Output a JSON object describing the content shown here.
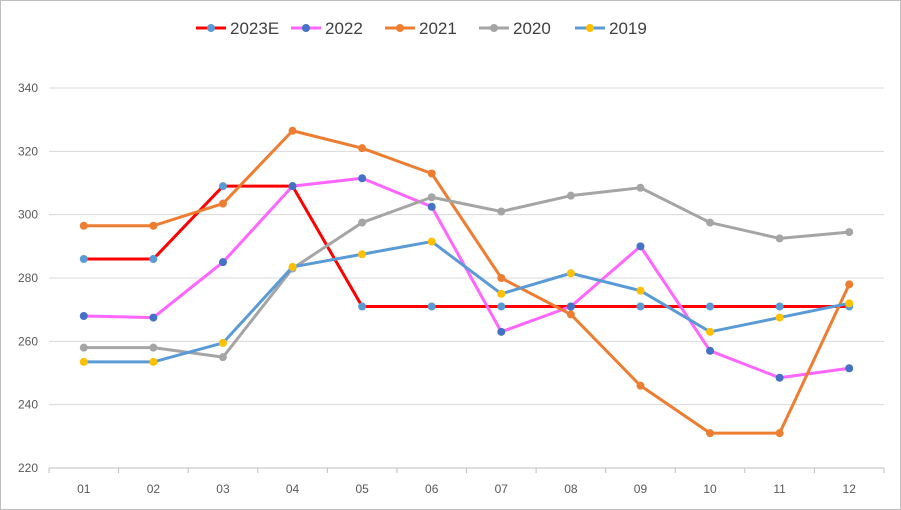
{
  "chart_data": {
    "type": "line",
    "title": "",
    "xlabel": "",
    "ylabel": "",
    "categories": [
      "01",
      "02",
      "03",
      "04",
      "05",
      "06",
      "07",
      "08",
      "09",
      "10",
      "11",
      "12"
    ],
    "ylim": [
      220,
      340
    ],
    "yticks": [
      220,
      240,
      260,
      280,
      300,
      320,
      340
    ],
    "grid": "horizontal",
    "legend_position": "top",
    "series": [
      {
        "name": "2023E",
        "color": "#ff0000",
        "marker_color": "#5b9bd5",
        "values": [
          286,
          286,
          309,
          309,
          271,
          271,
          271,
          271,
          271,
          271,
          271,
          271
        ]
      },
      {
        "name": "2022",
        "color": "#ff66ff",
        "marker_color": "#4472c4",
        "values": [
          268,
          267.5,
          285,
          309,
          311.5,
          302.5,
          263,
          271,
          290,
          257,
          248.5,
          251.5
        ]
      },
      {
        "name": "2021",
        "color": "#ed7d31",
        "marker_color": "#ed7d31",
        "values": [
          296.5,
          296.5,
          303.5,
          326.5,
          321,
          313,
          280,
          268.5,
          246,
          231,
          231,
          278
        ]
      },
      {
        "name": "2020",
        "color": "#a5a5a5",
        "marker_color": "#a5a5a5",
        "values": [
          258,
          258,
          255,
          283,
          297.5,
          305.5,
          301,
          306,
          308.5,
          297.5,
          292.5,
          294.5
        ]
      },
      {
        "name": "2019",
        "color": "#5b9bd5",
        "marker_color": "#ffc000",
        "values": [
          253.5,
          253.5,
          259.5,
          283.5,
          287.5,
          291.5,
          275,
          281.5,
          276,
          263,
          267.5,
          272
        ]
      }
    ]
  }
}
